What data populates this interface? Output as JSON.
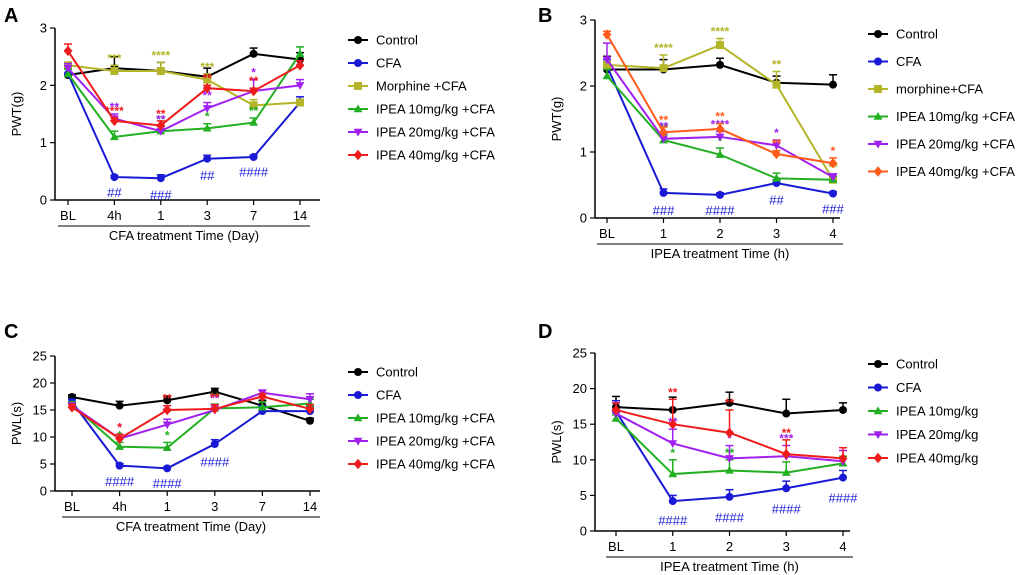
{
  "figure": {
    "panels": [
      "A",
      "B",
      "C",
      "D"
    ]
  },
  "chart_data": [
    {
      "panel": "A",
      "type": "line",
      "ylabel": "PWT(g)",
      "xlabel": "CFA treatment Time (Day)",
      "categories": [
        "BL",
        "4h",
        "1",
        "3",
        "7",
        "14"
      ],
      "ylim": [
        0,
        3
      ],
      "yticks": [
        "0",
        "1",
        "2",
        "3"
      ],
      "series": [
        {
          "name": "Control",
          "marker": "circle",
          "color": "#000000",
          "values": [
            2.18,
            2.3,
            2.25,
            2.15,
            2.55,
            2.45
          ],
          "errors": [
            0.1,
            0.2,
            0.15,
            0.15,
            0.1,
            0.12
          ],
          "stars": [
            "",
            "",
            "",
            "",
            "",
            ""
          ],
          "pounds": [
            "",
            "",
            "",
            "",
            "",
            ""
          ]
        },
        {
          "name": "CFA",
          "marker": "circle",
          "color": "#1a1ad6",
          "values": [
            2.2,
            0.4,
            0.38,
            0.72,
            0.75,
            1.7
          ],
          "errors": [
            0.12,
            0.03,
            0.06,
            0.06,
            0.03,
            0.1
          ],
          "stars": [
            "",
            "",
            "",
            "",
            "",
            ""
          ],
          "pounds": [
            "",
            "##",
            "###",
            "##",
            "####",
            ""
          ]
        },
        {
          "name": "Morphine +CFA",
          "marker": "square",
          "color": "#b5b52a",
          "values": [
            2.35,
            2.25,
            2.25,
            2.1,
            1.65,
            1.7
          ],
          "errors": [
            0.05,
            0.1,
            0.15,
            0.1,
            0.1,
            0.05
          ],
          "stars": [
            "",
            "***",
            "****",
            "***",
            "",
            ""
          ],
          "pounds": [
            "",
            "",
            "",
            "",
            "",
            ""
          ]
        },
        {
          "name": "IPEA 10mg/kg +CFA",
          "marker": "triangle-up",
          "color": "#22b022",
          "values": [
            2.2,
            1.1,
            1.2,
            1.25,
            1.35,
            2.55
          ],
          "errors": [
            0.08,
            0.1,
            0.08,
            0.08,
            0.08,
            0.12
          ],
          "stars": [
            "",
            "*",
            "**",
            "*",
            "**",
            ""
          ],
          "pounds": [
            "",
            "",
            "",
            "",
            "",
            ""
          ]
        },
        {
          "name": "IPEA  20mg/kg +CFA",
          "marker": "triangle-down",
          "color": "#a020f0",
          "values": [
            2.3,
            1.42,
            1.2,
            1.6,
            1.9,
            2.0
          ],
          "errors": [
            0.08,
            0.08,
            0.08,
            0.1,
            0.2,
            0.1
          ],
          "stars": [
            "",
            "**",
            "**",
            "**",
            "*",
            ""
          ],
          "pounds": [
            "",
            "",
            "",
            "",
            "",
            ""
          ]
        },
        {
          "name": "IPEA  40mg/kg +CFA",
          "marker": "diamond",
          "color": "#ee1c1c",
          "values": [
            2.6,
            1.38,
            1.3,
            1.95,
            1.9,
            2.35
          ],
          "errors": [
            0.12,
            0.05,
            0.08,
            0.05,
            0.05,
            0.08
          ],
          "stars": [
            "",
            "****",
            "**",
            "**",
            "**",
            ""
          ],
          "pounds": [
            "",
            "",
            "",
            "",
            "",
            ""
          ]
        }
      ]
    },
    {
      "panel": "B",
      "type": "line",
      "ylabel": "PWT(g)",
      "xlabel": "IPEA treatment Time (h)",
      "categories": [
        "BL",
        "1",
        "2",
        "3",
        "4"
      ],
      "ylim": [
        0,
        3
      ],
      "yticks": [
        "0",
        "1",
        "2",
        "3"
      ],
      "series": [
        {
          "name": "Control",
          "marker": "circle",
          "color": "#000000",
          "values": [
            2.25,
            2.25,
            2.32,
            2.05,
            2.02
          ],
          "errors": [
            0.2,
            0.15,
            0.1,
            0.1,
            0.15
          ],
          "stars": [
            "",
            "",
            "",
            "",
            ""
          ],
          "pounds": [
            "",
            "",
            "",
            "",
            ""
          ]
        },
        {
          "name": "CFA",
          "marker": "circle",
          "color": "#1a1ad6",
          "values": [
            2.3,
            0.38,
            0.35,
            0.53,
            0.37
          ],
          "errors": [
            0.1,
            0.06,
            0.03,
            0.05,
            0.03
          ],
          "stars": [
            "",
            "",
            "",
            "",
            ""
          ],
          "pounds": [
            "",
            "###",
            "####",
            "##",
            "###"
          ]
        },
        {
          "name": "morphine+CFA",
          "marker": "square",
          "color": "#b5b52a",
          "values": [
            2.32,
            2.27,
            2.62,
            2.02,
            0.58
          ],
          "errors": [
            0.05,
            0.2,
            0.1,
            0.2,
            0.08
          ],
          "stars": [
            "",
            "****",
            "****",
            "**",
            "**"
          ],
          "pounds": [
            "",
            "",
            "",
            "",
            ""
          ]
        },
        {
          "name": "IPEA 10mg/kg +CFA",
          "marker": "triangle-up",
          "color": "#22b022",
          "values": [
            2.15,
            1.18,
            0.96,
            0.6,
            0.58
          ],
          "errors": [
            0.1,
            0.08,
            0.1,
            0.08,
            0.05
          ],
          "stars": [
            "",
            "**",
            "*",
            "",
            ""
          ],
          "pounds": [
            "",
            "",
            "",
            "",
            ""
          ]
        },
        {
          "name": "IPEA 20mg/kg +CFA",
          "marker": "triangle-down",
          "color": "#a020f0",
          "values": [
            2.4,
            1.2,
            1.23,
            1.1,
            0.62
          ],
          "errors": [
            0.25,
            0.08,
            0.08,
            0.08,
            0.05
          ],
          "stars": [
            "",
            "**",
            "****",
            "*",
            ""
          ],
          "pounds": [
            "",
            "",
            "",
            "",
            ""
          ]
        },
        {
          "name": "IPEA 40mg/kg +CFA",
          "marker": "diamond",
          "color": "#ff5a1a",
          "values": [
            2.78,
            1.3,
            1.35,
            0.97,
            0.83
          ],
          "errors": [
            0.05,
            0.08,
            0.08,
            0.05,
            0.08
          ],
          "stars": [
            "",
            "**",
            "**",
            "**",
            "*"
          ],
          "pounds": [
            "",
            "",
            "",
            "",
            ""
          ]
        }
      ]
    },
    {
      "panel": "C",
      "type": "line",
      "ylabel": "PWL(s)",
      "xlabel": "CFA treatment Time (Day)",
      "categories": [
        "BL",
        "4h",
        "1",
        "3",
        "7",
        "14"
      ],
      "ylim": [
        0,
        25
      ],
      "yticks": [
        "0",
        "5",
        "10",
        "15",
        "20",
        "25"
      ],
      "series": [
        {
          "name": "Control",
          "marker": "circle",
          "color": "#000000",
          "values": [
            17.4,
            15.8,
            16.8,
            18.4,
            15.8,
            13.0
          ],
          "errors": [
            0.4,
            0.8,
            0.8,
            0.6,
            1.0,
            0.5
          ],
          "stars": [
            "",
            "",
            "",
            "",
            "",
            ""
          ],
          "pounds": [
            "",
            "",
            "",
            "",
            "",
            ""
          ]
        },
        {
          "name": "CFA",
          "marker": "circle",
          "color": "#1a1ad6",
          "values": [
            16.5,
            4.7,
            4.2,
            8.7,
            14.8,
            14.8
          ],
          "errors": [
            0.5,
            0.4,
            0.3,
            0.8,
            1.0,
            0.8
          ],
          "stars": [
            "",
            "",
            "",
            "",
            "",
            ""
          ],
          "pounds": [
            "",
            "####",
            "####",
            "####",
            "",
            ""
          ]
        },
        {
          "name": "IPEA 10mg/kg +CFA",
          "marker": "triangle-up",
          "color": "#22b022",
          "values": [
            16.0,
            8.2,
            8.0,
            15.3,
            15.5,
            16.2
          ],
          "errors": [
            0.5,
            0.8,
            1.0,
            0.8,
            1.0,
            0.8
          ],
          "stars": [
            "",
            "*",
            "*",
            "**",
            "",
            ""
          ],
          "pounds": [
            "",
            "",
            "",
            "",
            "",
            ""
          ]
        },
        {
          "name": "IPEA  20mg/kg +CFA",
          "marker": "triangle-down",
          "color": "#a020f0",
          "values": [
            15.8,
            9.7,
            12.3,
            15.0,
            18.2,
            17.0
          ],
          "errors": [
            0.5,
            0.8,
            1.0,
            0.8,
            0.5,
            1.0
          ],
          "stars": [
            "",
            "*",
            "**",
            "**",
            "",
            ""
          ],
          "pounds": [
            "",
            "",
            "",
            "",
            "",
            ""
          ]
        },
        {
          "name": "IPEA  40mg/kg +CFA",
          "marker": "diamond",
          "color": "#ee1c1c",
          "values": [
            15.5,
            9.7,
            15.0,
            15.2,
            17.5,
            15.2
          ],
          "errors": [
            0.5,
            0.8,
            0.8,
            0.8,
            0.5,
            0.8
          ],
          "stars": [
            "",
            "*",
            "**",
            "**",
            "",
            ""
          ],
          "pounds": [
            "",
            "",
            "",
            "",
            "",
            ""
          ]
        }
      ]
    },
    {
      "panel": "D",
      "type": "line",
      "ylabel": "PWL(s)",
      "xlabel": "IPEA treatment Time (h)",
      "categories": [
        "BL",
        "1",
        "2",
        "3",
        "4"
      ],
      "ylim": [
        0,
        25
      ],
      "yticks": [
        "0",
        "5",
        "10",
        "15",
        "20",
        "25"
      ],
      "series": [
        {
          "name": "Control",
          "marker": "circle",
          "color": "#000000",
          "values": [
            17.4,
            17.0,
            18.0,
            16.5,
            17.0
          ],
          "errors": [
            1.5,
            1.8,
            1.5,
            2.0,
            1.0
          ],
          "stars": [
            "",
            "",
            "",
            "",
            ""
          ],
          "pounds": [
            "",
            "",
            "",
            "",
            ""
          ]
        },
        {
          "name": "CFA",
          "marker": "circle",
          "color": "#1a1ad6",
          "values": [
            16.8,
            4.2,
            4.8,
            6.0,
            7.5
          ],
          "errors": [
            1.5,
            0.8,
            1.0,
            1.0,
            1.0
          ],
          "stars": [
            "",
            "",
            "",
            "",
            ""
          ],
          "pounds": [
            "",
            "####",
            "####",
            "####",
            "####"
          ]
        },
        {
          "name": "IPEA 10mg/kg",
          "marker": "triangle-up",
          "color": "#22b022",
          "values": [
            15.8,
            8.0,
            8.5,
            8.2,
            9.5
          ],
          "errors": [
            0.5,
            2.0,
            1.5,
            1.5,
            1.0
          ],
          "stars": [
            "",
            "*",
            "**",
            "",
            ""
          ],
          "pounds": [
            "",
            "",
            "",
            "",
            ""
          ]
        },
        {
          "name": "IPEA 20mg/kg",
          "marker": "triangle-down",
          "color": "#a020f0",
          "values": [
            16.5,
            12.3,
            10.2,
            10.5,
            9.8
          ],
          "errors": [
            1.5,
            2.0,
            1.8,
            1.5,
            1.5
          ],
          "stars": [
            "",
            "**",
            "*",
            "***",
            ""
          ],
          "pounds": [
            "",
            "",
            "",
            "",
            ""
          ]
        },
        {
          "name": "IPEA 40mg/kg",
          "marker": "diamond",
          "color": "#ee1c1c",
          "values": [
            17.0,
            15.0,
            13.8,
            10.8,
            10.2
          ],
          "errors": [
            1.0,
            3.5,
            3.2,
            2.0,
            1.5
          ],
          "stars": [
            "",
            "**",
            "**",
            "**",
            ""
          ],
          "pounds": [
            "",
            "",
            "",
            "",
            ""
          ]
        }
      ]
    }
  ]
}
